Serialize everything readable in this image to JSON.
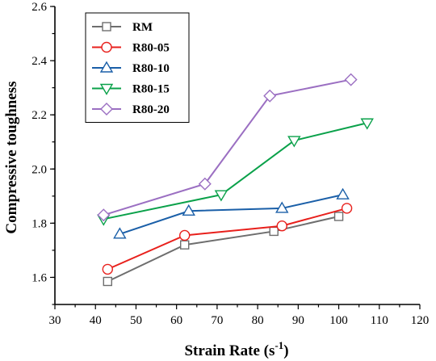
{
  "chart_data": {
    "type": "line",
    "title": "",
    "xlabel": "Strain Rate (s",
    "xlabel_sup": "-1",
    "xlabel_close": ")",
    "ylabel": "Compressive toughness",
    "xlim": [
      30,
      120
    ],
    "ylim": [
      1.5,
      2.6
    ],
    "xticks": [
      30,
      40,
      50,
      60,
      70,
      80,
      90,
      100,
      110,
      120
    ],
    "yticks": [
      1.6,
      1.8,
      2.0,
      2.2,
      2.4,
      2.6
    ],
    "ytick_labels": [
      "1.6",
      "1.8",
      "2.0",
      "2.2",
      "2.4",
      "2.6"
    ],
    "legend_position": "top-left",
    "grid": false,
    "series": [
      {
        "name": "RM",
        "color": "#6e6e6e",
        "marker": "square",
        "x": [
          43,
          62,
          84,
          100
        ],
        "y": [
          1.585,
          1.72,
          1.77,
          1.825
        ]
      },
      {
        "name": "R80-05",
        "color": "#e8201c",
        "marker": "circle",
        "x": [
          43,
          62,
          86,
          102
        ],
        "y": [
          1.63,
          1.755,
          1.79,
          1.855
        ]
      },
      {
        "name": "R80-10",
        "color": "#1a5fa8",
        "marker": "triangle-up",
        "x": [
          46,
          63,
          86,
          101
        ],
        "y": [
          1.76,
          1.845,
          1.855,
          1.905
        ]
      },
      {
        "name": "R80-15",
        "color": "#0aa14a",
        "marker": "triangle-down",
        "x": [
          42,
          71,
          89,
          107
        ],
        "y": [
          1.815,
          1.905,
          2.105,
          2.17
        ]
      },
      {
        "name": "R80-20",
        "color": "#9b6fc2",
        "marker": "diamond",
        "x": [
          42,
          67,
          83,
          103
        ],
        "y": [
          1.83,
          1.945,
          2.27,
          2.33
        ]
      }
    ]
  }
}
